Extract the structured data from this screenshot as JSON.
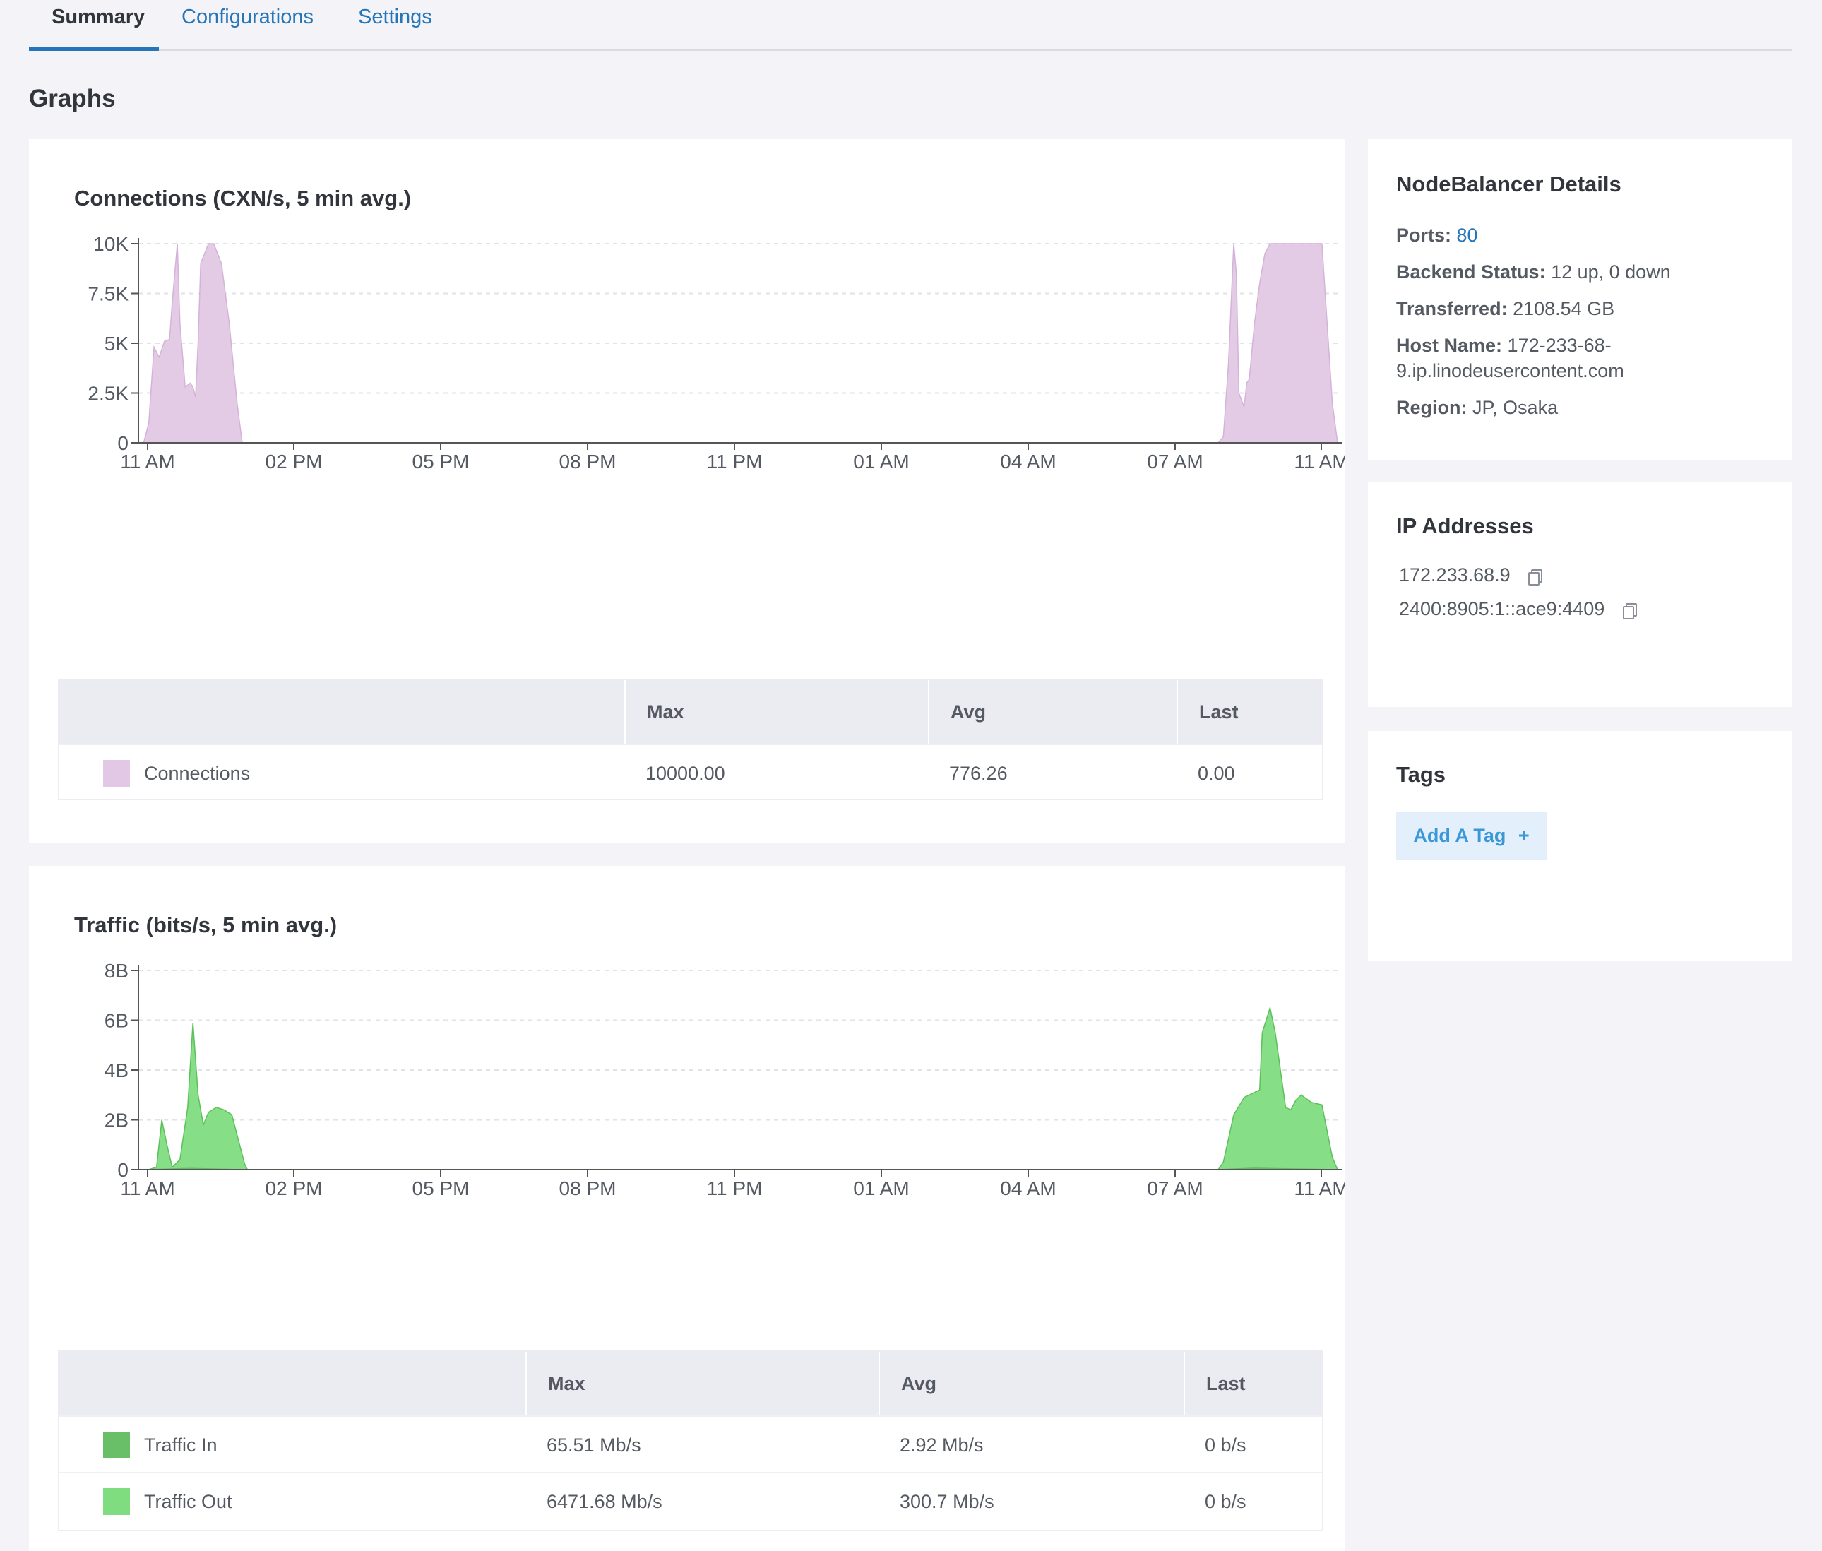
{
  "tabs": [
    {
      "label": "Summary",
      "active": true
    },
    {
      "label": "Configurations",
      "active": false
    },
    {
      "label": "Settings",
      "active": false
    }
  ],
  "section_title": "Graphs",
  "connections_panel": {
    "title": "Connections (CXN/s, 5 min avg.)",
    "legend": {
      "headers": [
        "",
        "Max",
        "Avg",
        "Last"
      ],
      "rows": [
        {
          "name": "Connections",
          "color": "#e2c8e4",
          "max": "10000.00",
          "avg": "776.26",
          "last": "0.00"
        }
      ]
    }
  },
  "traffic_panel": {
    "title": "Traffic (bits/s, 5 min avg.)",
    "legend": {
      "headers": [
        "",
        "Max",
        "Avg",
        "Last"
      ],
      "rows": [
        {
          "name": "Traffic In",
          "color": "#68bf68",
          "max": "65.51 Mb/s",
          "avg": "2.92 Mb/s",
          "last": "0 b/s"
        },
        {
          "name": "Traffic Out",
          "color": "#7fdc7f",
          "max": "6471.68 Mb/s",
          "avg": "300.7 Mb/s",
          "last": "0 b/s"
        }
      ]
    }
  },
  "chart_data": [
    {
      "type": "area",
      "title": "Connections (CXN/s, 5 min avg.)",
      "x_tick_labels": [
        "11 AM",
        "02 PM",
        "05 PM",
        "08 PM",
        "11 PM",
        "01 AM",
        "04 AM",
        "07 AM",
        "11 AM"
      ],
      "y_tick_labels": [
        "0",
        "2.5K",
        "5K",
        "7.5K",
        "10K"
      ],
      "ylim": [
        0,
        10000
      ],
      "grid": true,
      "color": "#e2c8e4",
      "series": [
        {
          "name": "Connections",
          "x": [
            11.0,
            11.1,
            11.2,
            11.3,
            11.4,
            11.5,
            11.6,
            11.65,
            11.75,
            11.8,
            11.9,
            12.0,
            12.05,
            12.1,
            12.15,
            12.2,
            12.35,
            12.45,
            12.6,
            12.75,
            12.9,
            13.0,
            13.05,
            13.1,
            13.2,
            31.8,
            31.9,
            32.0,
            32.1,
            32.15,
            32.2,
            32.3,
            32.35,
            32.4,
            32.5,
            32.6,
            32.7,
            32.8,
            32.9,
            33.0,
            33.1,
            33.2,
            33.4,
            33.6,
            33.8,
            34.0,
            34.1
          ],
          "y": [
            0,
            0,
            1000,
            4800,
            4300,
            5100,
            5200,
            7000,
            10000,
            6000,
            2800,
            3000,
            2800,
            2300,
            5000,
            9000,
            10000,
            10000,
            9000,
            6000,
            2000,
            0,
            0,
            0,
            0,
            0,
            300,
            4000,
            10000,
            8500,
            2500,
            1800,
            3000,
            3200,
            6000,
            8000,
            9500,
            10000,
            10000,
            10000,
            10000,
            10000,
            10000,
            10000,
            10000,
            2000,
            0
          ]
        }
      ]
    },
    {
      "type": "area",
      "title": "Traffic (bits/s, 5 min avg.)",
      "x_tick_labels": [
        "11 AM",
        "02 PM",
        "05 PM",
        "08 PM",
        "11 PM",
        "01 AM",
        "04 AM",
        "07 AM",
        "11 AM"
      ],
      "y_tick_labels": [
        "0",
        "2B",
        "4B",
        "6B",
        "8B"
      ],
      "ylim": [
        0,
        8
      ],
      "grid": true,
      "series": [
        {
          "name": "Traffic In",
          "color": "#68bf68",
          "x": [
            11.0,
            11.5,
            12.0,
            13.0,
            31.8,
            32.5,
            33.0,
            34.1
          ],
          "y": [
            0,
            0.02,
            0.05,
            0,
            0,
            0.06,
            0.04,
            0
          ]
        },
        {
          "name": "Traffic Out",
          "color": "#7fdc7f",
          "x": [
            11.0,
            11.2,
            11.35,
            11.45,
            11.55,
            11.65,
            11.8,
            11.95,
            12.05,
            12.15,
            12.25,
            12.35,
            12.5,
            12.65,
            12.8,
            12.95,
            13.05,
            13.1,
            13.2,
            31.8,
            31.9,
            32.1,
            32.3,
            32.5,
            32.6,
            32.65,
            32.8,
            32.9,
            33.0,
            33.1,
            33.2,
            33.3,
            33.4,
            33.6,
            33.8,
            34.0,
            34.1
          ],
          "y": [
            0,
            0,
            0.1,
            2.0,
            1.0,
            0.1,
            0.4,
            2.5,
            5.9,
            3.0,
            1.8,
            2.3,
            2.5,
            2.4,
            2.2,
            1.0,
            0.2,
            0,
            0,
            0,
            0.3,
            2.2,
            2.9,
            3.1,
            3.2,
            5.5,
            6.5,
            5.5,
            4.0,
            2.5,
            2.4,
            2.8,
            3.0,
            2.7,
            2.6,
            0.5,
            0
          ]
        }
      ]
    }
  ],
  "details": {
    "title": "NodeBalancer Details",
    "ports_label": "Ports:",
    "ports_value": "80",
    "backend_label": "Backend Status:",
    "backend_value": "12 up, 0 down",
    "transferred_label": "Transferred:",
    "transferred_value": "2108.54 GB",
    "host_label": "Host Name:",
    "host_value_line1": "172-233-68-",
    "host_value_line2": "9.ip.linodeusercontent.com",
    "region_label": "Region:",
    "region_value": "JP, Osaka"
  },
  "ip_addresses": {
    "title": "IP Addresses",
    "items": [
      "172.233.68.9",
      "2400:8905:1::ace9:4409"
    ]
  },
  "tags": {
    "title": "Tags",
    "add_label": "Add A Tag",
    "add_icon": "+"
  }
}
